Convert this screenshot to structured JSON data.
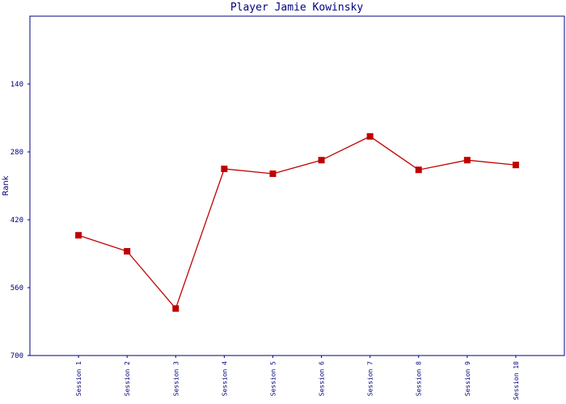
{
  "chart_data": {
    "type": "line",
    "title": "Player Jamie Kowinsky",
    "y_label": "Rank",
    "categories": [
      "Session 1",
      "Session 2",
      "Session 3",
      "Session 4",
      "Session 5",
      "Session 6",
      "Session 7",
      "Session 8",
      "Session 9",
      "Session 10"
    ],
    "series": [
      {
        "name": "Rank",
        "color": "#c00000",
        "values": [
          452,
          485,
          603,
          315,
          325,
          297,
          248,
          317,
          297,
          307
        ]
      }
    ],
    "ylim": [
      0,
      700
    ],
    "yticks": [
      140,
      280,
      420,
      560,
      700
    ],
    "y_inverted": true,
    "grid": false
  }
}
